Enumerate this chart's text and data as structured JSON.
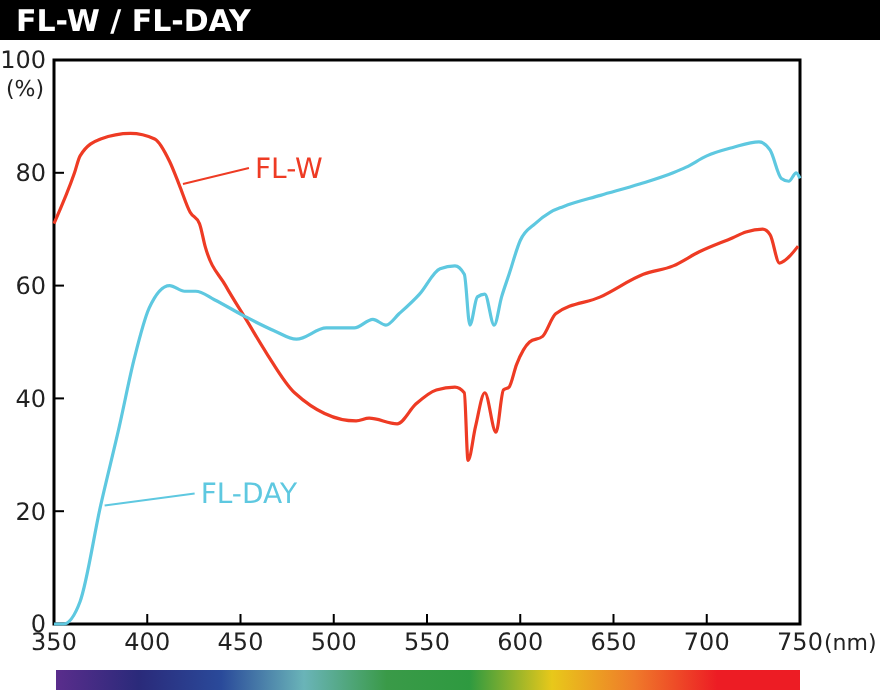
{
  "chart_data": {
    "type": "line",
    "title": "FL-W / FL-DAY",
    "xlabel": "(nm)",
    "ylabel": "(%)",
    "xlim": [
      350,
      750
    ],
    "ylim": [
      0,
      100
    ],
    "xticks": [
      350,
      400,
      450,
      500,
      550,
      600,
      650,
      700,
      750
    ],
    "yticks": [
      0,
      20,
      40,
      60,
      80,
      100
    ],
    "grid": false,
    "legend": "left",
    "marker": "none",
    "line_style": "solid",
    "series": [
      {
        "name": "FL-W",
        "color": "#ee3b24",
        "x": [
          350,
          361,
          364,
          375,
          391,
          404,
          412,
          417,
          423,
          428,
          431,
          442,
          453,
          464,
          479,
          512,
          519,
          534,
          544,
          555,
          565,
          570,
          572,
          576,
          581,
          587,
          591,
          594,
          598,
          605,
          612,
          619,
          643,
          666,
          682,
          696,
          714,
          721,
          730,
          734,
          739,
          742,
          749
        ],
        "values": [
          71,
          80,
          83,
          86,
          87,
          86,
          82,
          78,
          73,
          71,
          67,
          60,
          54,
          48,
          41,
          36,
          36.5,
          35.5,
          39,
          41.5,
          42,
          41,
          29,
          35,
          41,
          34,
          41.5,
          42,
          46,
          50,
          51,
          55,
          58,
          62,
          63.5,
          66,
          68.5,
          69.5,
          70,
          69,
          64,
          64.5,
          67
        ]
      },
      {
        "name": "FL-DAY",
        "color": "#5ec8e0",
        "x": [
          350,
          355,
          364,
          375,
          385,
          393,
          401,
          412,
          420,
          426,
          436,
          452,
          468,
          480,
          496,
          511,
          521,
          528,
          535,
          546,
          557,
          565,
          570,
          573,
          577,
          581,
          586,
          590,
          594,
          600,
          608,
          616,
          623,
          643,
          664,
          682,
          689,
          700,
          714,
          728,
          734,
          740,
          744,
          748,
          750
        ],
        "values": [
          0,
          0,
          4,
          21,
          35,
          47,
          56,
          60,
          59,
          59,
          57.5,
          54.6,
          52,
          50.5,
          52.5,
          52.5,
          54,
          53,
          55,
          58.5,
          63,
          63.5,
          62,
          53,
          58,
          58.5,
          53,
          58,
          62,
          68,
          71,
          73,
          74,
          76,
          78,
          80,
          81,
          83,
          84.5,
          85.5,
          84,
          79,
          78.5,
          80,
          79
        ]
      }
    ]
  }
}
